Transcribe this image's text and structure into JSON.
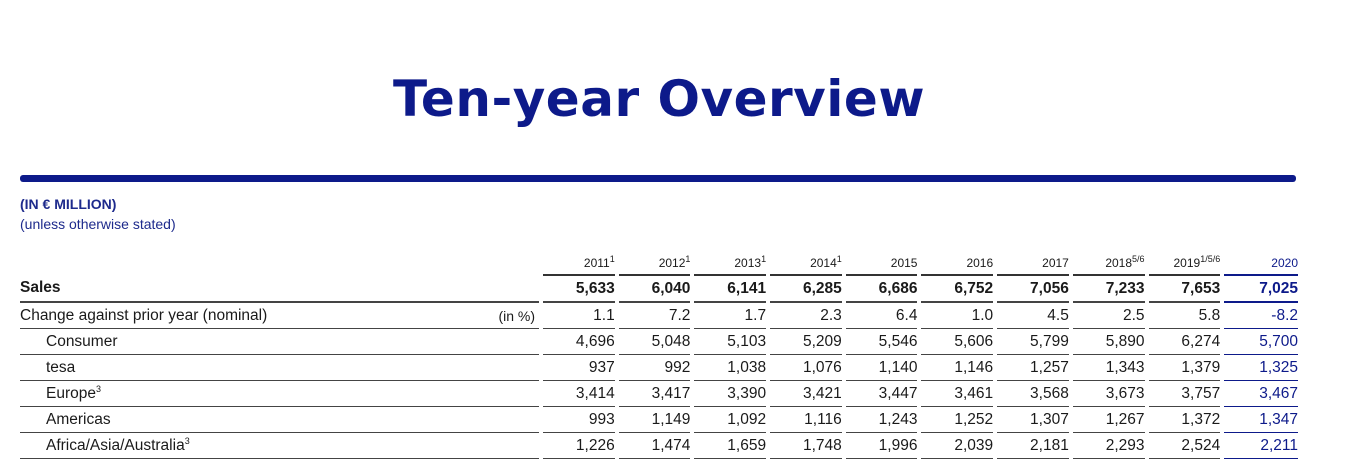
{
  "title": "Ten-year Overview",
  "unit_line1": "(IN € MILLION)",
  "unit_line2": "(unless otherwise stated)",
  "colors": {
    "brand_blue": "#0d1a8a",
    "text": "#1a1a1a"
  },
  "table": {
    "years": [
      {
        "label": "2011",
        "sup": "1"
      },
      {
        "label": "2012",
        "sup": "1"
      },
      {
        "label": "2013",
        "sup": "1"
      },
      {
        "label": "2014",
        "sup": "1"
      },
      {
        "label": "2015",
        "sup": ""
      },
      {
        "label": "2016",
        "sup": ""
      },
      {
        "label": "2017",
        "sup": ""
      },
      {
        "label": "2018",
        "sup": "5/6"
      },
      {
        "label": "2019",
        "sup": "1/5/6"
      },
      {
        "label": "2020",
        "sup": ""
      }
    ],
    "rows": [
      {
        "label": "Sales",
        "sup": "",
        "unit": "",
        "values": [
          "5,633",
          "6,040",
          "6,141",
          "6,285",
          "6,686",
          "6,752",
          "7,056",
          "7,233",
          "7,653",
          "7,025"
        ]
      },
      {
        "label": "Change against prior year (nominal)",
        "sup": "",
        "unit": "(in %)",
        "values": [
          "1.1",
          "7.2",
          "1.7",
          "2.3",
          "6.4",
          "1.0",
          "4.5",
          "2.5",
          "5.8",
          "-8.2"
        ]
      },
      {
        "label": "Consumer",
        "sup": "",
        "unit": "",
        "values": [
          "4,696",
          "5,048",
          "5,103",
          "5,209",
          "5,546",
          "5,606",
          "5,799",
          "5,890",
          "6,274",
          "5,700"
        ]
      },
      {
        "label": "tesa",
        "sup": "",
        "unit": "",
        "values": [
          "937",
          "992",
          "1,038",
          "1,076",
          "1,140",
          "1,146",
          "1,257",
          "1,343",
          "1,379",
          "1,325"
        ]
      },
      {
        "label": "Europe",
        "sup": "3",
        "unit": "",
        "values": [
          "3,414",
          "3,417",
          "3,390",
          "3,421",
          "3,447",
          "3,461",
          "3,568",
          "3,673",
          "3,757",
          "3,467"
        ]
      },
      {
        "label": "Americas",
        "sup": "",
        "unit": "",
        "values": [
          "993",
          "1,149",
          "1,092",
          "1,116",
          "1,243",
          "1,252",
          "1,307",
          "1,267",
          "1,372",
          "1,347"
        ]
      },
      {
        "label": "Africa/Asia/Australia",
        "sup": "3",
        "unit": "",
        "values": [
          "1,226",
          "1,474",
          "1,659",
          "1,748",
          "1,996",
          "2,039",
          "2,181",
          "2,293",
          "2,524",
          "2,211"
        ]
      }
    ]
  }
}
